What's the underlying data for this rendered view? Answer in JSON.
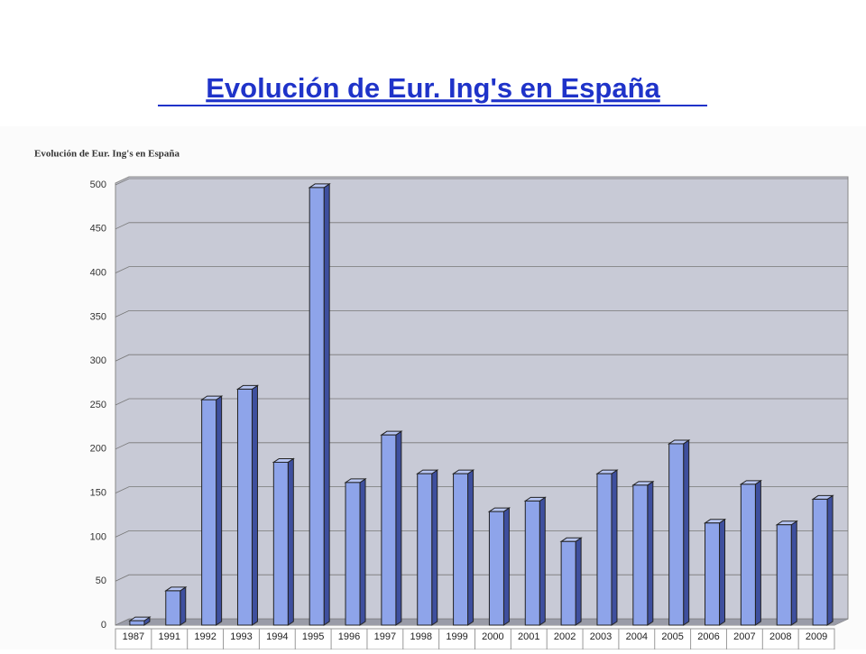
{
  "slide_title": "Evolución de Eur. Ing's en España",
  "chart_data": {
    "type": "bar",
    "title": "Evolución de Eur. Ing's en España",
    "categories": [
      "1987",
      "1991",
      "1992",
      "1993",
      "1994",
      "1995",
      "1996",
      "1997",
      "1998",
      "1999",
      "2000",
      "2001",
      "2002",
      "2003",
      "2004",
      "2005",
      "2006",
      "2007",
      "2008",
      "2009"
    ],
    "values": [
      5,
      39,
      256,
      268,
      185,
      497,
      162,
      216,
      172,
      172,
      129,
      141,
      95,
      172,
      159,
      206,
      116,
      160,
      114,
      143
    ],
    "color": "#8ea4ea",
    "ylim": [
      0,
      500
    ],
    "yticks": [
      0,
      50,
      100,
      150,
      200,
      250,
      300,
      350,
      400,
      450,
      500
    ],
    "grid": true
  }
}
